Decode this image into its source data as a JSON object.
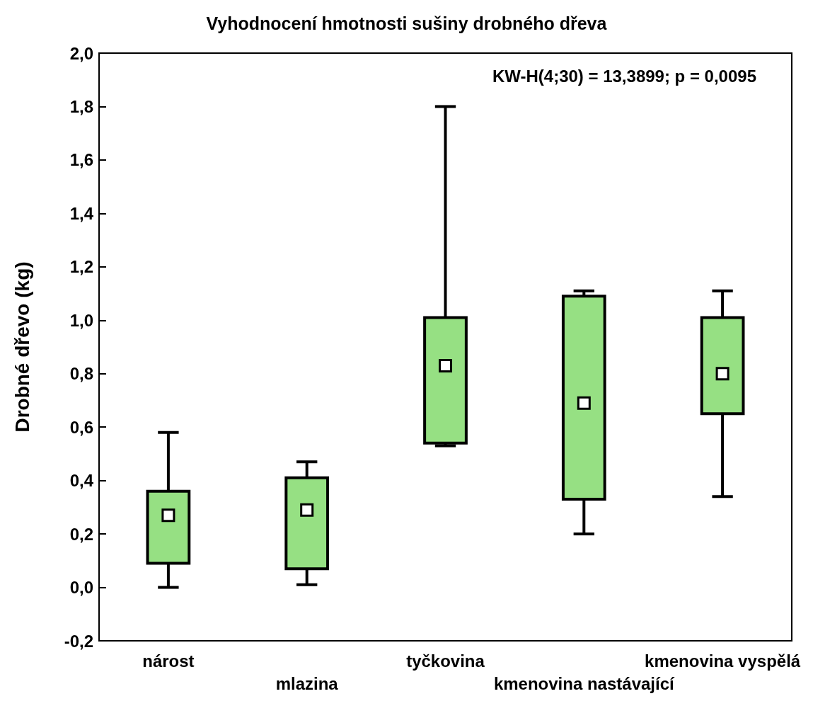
{
  "chart_data": {
    "type": "box",
    "title": "Vyhodnocení hmotnosti sušiny drobného dřeva",
    "ylabel": "Drobné dřevo (kg)",
    "categories": [
      "nárost",
      "mlazina",
      "tyčkovina",
      "kmenovina nastávající",
      "kmenovina vyspělá"
    ],
    "series": [
      {
        "color": "#96e083",
        "boxes": [
          {
            "low": 0.0,
            "q1": 0.09,
            "median": 0.27,
            "q3": 0.36,
            "high": 0.58
          },
          {
            "low": 0.01,
            "q1": 0.07,
            "median": 0.29,
            "q3": 0.41,
            "high": 0.47
          },
          {
            "low": 0.53,
            "q1": 0.54,
            "median": 0.83,
            "q3": 1.01,
            "high": 1.8
          },
          {
            "low": 0.2,
            "q1": 0.33,
            "median": 0.69,
            "q3": 1.09,
            "high": 1.11
          },
          {
            "low": 0.34,
            "q1": 0.65,
            "median": 0.8,
            "q3": 1.01,
            "high": 1.11
          }
        ]
      }
    ],
    "ylim": [
      -0.2,
      2.0
    ],
    "yticks": [
      {
        "value": -0.2,
        "label": "-0,2"
      },
      {
        "value": 0,
        "label": "0,0"
      },
      {
        "value": 0.2,
        "label": "0,2"
      },
      {
        "value": 0.4,
        "label": "0,4"
      },
      {
        "value": 0.6,
        "label": "0,6"
      },
      {
        "value": 0.8,
        "label": "0,8"
      },
      {
        "value": 1.0,
        "label": "1,0"
      },
      {
        "value": 1.2,
        "label": "1,2"
      },
      {
        "value": 1.4,
        "label": "1,4"
      },
      {
        "value": 1.6,
        "label": "1,6"
      },
      {
        "value": 1.8,
        "label": "1,8"
      },
      {
        "value": 2.0,
        "label": "2,0"
      }
    ],
    "annotations": [
      "KW-H(4;30) = 13,3899; p = 0,0095"
    ],
    "marker": "square",
    "grid": false
  }
}
